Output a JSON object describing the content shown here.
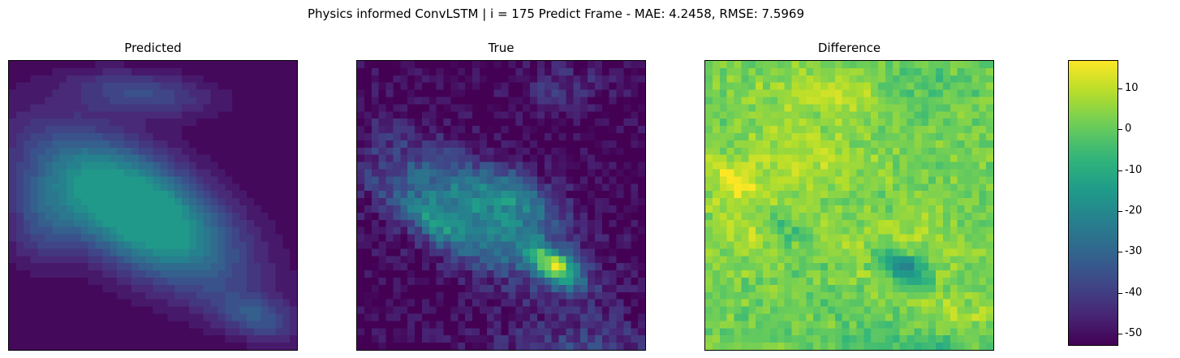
{
  "figure": {
    "suptitle": "Physics informed ConvLSTM | i = 175 Predict Frame - MAE: 4.2458, RMSE: 7.5969"
  },
  "chart_data": [
    {
      "type": "heatmap",
      "title": "Predicted",
      "grid": [
        40,
        40
      ],
      "axes_ticks": false,
      "pattern": "smooth diagonal band of moderate values (~-30 on shared scale) from upper-center to lower-right, low values elsewhere"
    },
    {
      "type": "heatmap",
      "title": "True",
      "grid": [
        40,
        40
      ],
      "axes_ticks": false,
      "pattern": "noisier diagonal band with bright hotspot near lower-center-right"
    },
    {
      "type": "heatmap",
      "title": "Difference",
      "grid": [
        40,
        40
      ],
      "axes_ticks": false,
      "colorbar": {
        "colormap": "viridis",
        "range": [
          -53,
          17
        ],
        "ticks": [
          10,
          0,
          -10,
          -20,
          -30,
          -40,
          -50
        ]
      }
    }
  ],
  "colors": {
    "viridis": [
      "#440154",
      "#482878",
      "#3e4989",
      "#31688e",
      "#26828e",
      "#1f9e89",
      "#35b779",
      "#6ece58",
      "#b5de2b",
      "#fde725"
    ]
  }
}
